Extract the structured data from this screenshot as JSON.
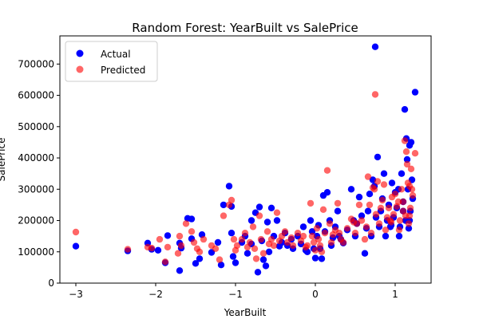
{
  "chart_data": {
    "type": "scatter",
    "title": "Random Forest: YearBuilt vs SalePrice",
    "xlabel": "YearBuilt",
    "ylabel": "SalePrice",
    "xlim": [
      -3.2,
      1.45
    ],
    "ylim": [
      0,
      790000
    ],
    "xticks": [
      -3,
      -2,
      -1,
      0,
      1
    ],
    "xtick_labels": [
      "−3",
      "−2",
      "−1",
      "0",
      "1"
    ],
    "yticks": [
      0,
      100000,
      200000,
      300000,
      400000,
      500000,
      600000,
      700000
    ],
    "ytick_labels": [
      "0",
      "100000",
      "200000",
      "300000",
      "400000",
      "500000",
      "600000",
      "700000"
    ],
    "grid": false,
    "legend": {
      "position": "upper-left"
    },
    "series": [
      {
        "name": "Actual",
        "color": "#0000ff",
        "opacity": 1.0,
        "points": [
          [
            -3.0,
            118000
          ],
          [
            -2.35,
            103000
          ],
          [
            -2.1,
            128000
          ],
          [
            -2.05,
            108000
          ],
          [
            -1.97,
            105000
          ],
          [
            -1.88,
            65000
          ],
          [
            -1.85,
            152000
          ],
          [
            -1.7,
            40000
          ],
          [
            -1.7,
            128000
          ],
          [
            -1.68,
            112000
          ],
          [
            -1.6,
            207000
          ],
          [
            -1.55,
            205000
          ],
          [
            -1.55,
            142000
          ],
          [
            -1.5,
            63000
          ],
          [
            -1.45,
            78000
          ],
          [
            -1.42,
            155000
          ],
          [
            -1.3,
            98000
          ],
          [
            -1.22,
            130000
          ],
          [
            -1.18,
            58000
          ],
          [
            -1.15,
            250000
          ],
          [
            -1.08,
            310000
          ],
          [
            -1.05,
            245000
          ],
          [
            -1.05,
            160000
          ],
          [
            -1.03,
            85000
          ],
          [
            -1.0,
            65000
          ],
          [
            -0.92,
            130000
          ],
          [
            -0.88,
            150000
          ],
          [
            -0.85,
            95000
          ],
          [
            -0.8,
            125000
          ],
          [
            -0.8,
            200000
          ],
          [
            -0.75,
            225000
          ],
          [
            -0.72,
            35000
          ],
          [
            -0.7,
            243000
          ],
          [
            -0.67,
            135000
          ],
          [
            -0.65,
            75000
          ],
          [
            -0.62,
            55000
          ],
          [
            -0.6,
            195000
          ],
          [
            -0.58,
            100000
          ],
          [
            -0.55,
            240000
          ],
          [
            -0.52,
            150000
          ],
          [
            -0.48,
            200000
          ],
          [
            -0.45,
            118000
          ],
          [
            -0.42,
            130000
          ],
          [
            -0.38,
            160000
          ],
          [
            -0.35,
            120000
          ],
          [
            -0.3,
            140000
          ],
          [
            -0.28,
            110000
          ],
          [
            -0.22,
            150000
          ],
          [
            -0.18,
            125000
          ],
          [
            -0.15,
            180000
          ],
          [
            -0.12,
            105000
          ],
          [
            -0.1,
            100000
          ],
          [
            -0.06,
            200000
          ],
          [
            -0.04,
            165000
          ],
          [
            -0.02,
            110000
          ],
          [
            0.0,
            80000
          ],
          [
            0.02,
            150000
          ],
          [
            0.04,
            185000
          ],
          [
            0.06,
            110000
          ],
          [
            0.08,
            78000
          ],
          [
            0.1,
            280000
          ],
          [
            0.12,
            165000
          ],
          [
            0.15,
            290000
          ],
          [
            0.18,
            200000
          ],
          [
            0.2,
            120000
          ],
          [
            0.22,
            145000
          ],
          [
            0.25,
            180000
          ],
          [
            0.28,
            230000
          ],
          [
            0.3,
            150000
          ],
          [
            0.32,
            140000
          ],
          [
            0.35,
            128000
          ],
          [
            0.4,
            170000
          ],
          [
            0.45,
            300000
          ],
          [
            0.48,
            200000
          ],
          [
            0.5,
            150000
          ],
          [
            0.52,
            190000
          ],
          [
            0.55,
            275000
          ],
          [
            0.58,
            215000
          ],
          [
            0.62,
            95000
          ],
          [
            0.64,
            175000
          ],
          [
            0.66,
            230000
          ],
          [
            0.68,
            285000
          ],
          [
            0.7,
            150000
          ],
          [
            0.72,
            330000
          ],
          [
            0.74,
            310000
          ],
          [
            0.75,
            755000
          ],
          [
            0.76,
            210000
          ],
          [
            0.78,
            403000
          ],
          [
            0.8,
            180000
          ],
          [
            0.82,
            230000
          ],
          [
            0.84,
            270000
          ],
          [
            0.86,
            350000
          ],
          [
            0.88,
            150000
          ],
          [
            0.9,
            200000
          ],
          [
            0.92,
            250000
          ],
          [
            0.94,
            180000
          ],
          [
            0.96,
            320000
          ],
          [
            0.98,
            210000
          ],
          [
            1.0,
            290000
          ],
          [
            1.02,
            240000
          ],
          [
            1.04,
            300000
          ],
          [
            1.06,
            180000
          ],
          [
            1.08,
            350000
          ],
          [
            1.1,
            260000
          ],
          [
            1.12,
            555000
          ],
          [
            1.13,
            200000
          ],
          [
            1.14,
            462000
          ],
          [
            1.15,
            395000
          ],
          [
            1.16,
            300000
          ],
          [
            1.17,
            175000
          ],
          [
            1.18,
            440000
          ],
          [
            1.19,
            230000
          ],
          [
            1.2,
            450000
          ],
          [
            1.21,
            330000
          ],
          [
            1.22,
            270000
          ],
          [
            1.25,
            610000
          ],
          [
            1.05,
            150000
          ],
          [
            0.95,
            185000
          ],
          [
            1.1,
            230000
          ],
          [
            1.18,
            200000
          ]
        ]
      },
      {
        "name": "Predicted",
        "color": "#ff0000",
        "opacity": 0.6,
        "points": [
          [
            -3.0,
            163000
          ],
          [
            -2.35,
            108000
          ],
          [
            -2.1,
            115000
          ],
          [
            -2.05,
            112000
          ],
          [
            -1.95,
            140000
          ],
          [
            -1.88,
            68000
          ],
          [
            -1.85,
            115000
          ],
          [
            -1.72,
            95000
          ],
          [
            -1.7,
            150000
          ],
          [
            -1.68,
            120000
          ],
          [
            -1.62,
            190000
          ],
          [
            -1.55,
            165000
          ],
          [
            -1.52,
            130000
          ],
          [
            -1.48,
            110000
          ],
          [
            -1.45,
            100000
          ],
          [
            -1.4,
            140000
          ],
          [
            -1.3,
            120000
          ],
          [
            -1.25,
            110000
          ],
          [
            -1.2,
            75000
          ],
          [
            -1.15,
            215000
          ],
          [
            -1.08,
            250000
          ],
          [
            -1.05,
            265000
          ],
          [
            -1.02,
            140000
          ],
          [
            -1.0,
            105000
          ],
          [
            -0.98,
            120000
          ],
          [
            -0.92,
            140000
          ],
          [
            -0.88,
            160000
          ],
          [
            -0.85,
            115000
          ],
          [
            -0.82,
            130000
          ],
          [
            -0.78,
            180000
          ],
          [
            -0.76,
            110000
          ],
          [
            -0.74,
            78000
          ],
          [
            -0.7,
            215000
          ],
          [
            -0.68,
            140000
          ],
          [
            -0.65,
            95000
          ],
          [
            -0.6,
            165000
          ],
          [
            -0.58,
            125000
          ],
          [
            -0.55,
            140000
          ],
          [
            -0.52,
            120000
          ],
          [
            -0.48,
            225000
          ],
          [
            -0.45,
            135000
          ],
          [
            -0.42,
            150000
          ],
          [
            -0.38,
            165000
          ],
          [
            -0.35,
            130000
          ],
          [
            -0.3,
            145000
          ],
          [
            -0.28,
            120000
          ],
          [
            -0.22,
            160000
          ],
          [
            -0.18,
            135000
          ],
          [
            -0.15,
            150000
          ],
          [
            -0.12,
            115000
          ],
          [
            -0.1,
            120000
          ],
          [
            -0.06,
            255000
          ],
          [
            -0.04,
            150000
          ],
          [
            -0.02,
            130000
          ],
          [
            0.0,
            105000
          ],
          [
            0.02,
            175000
          ],
          [
            0.04,
            140000
          ],
          [
            0.06,
            120000
          ],
          [
            0.08,
            100000
          ],
          [
            0.1,
            235000
          ],
          [
            0.12,
            160000
          ],
          [
            0.15,
            360000
          ],
          [
            0.18,
            190000
          ],
          [
            0.2,
            130000
          ],
          [
            0.22,
            155000
          ],
          [
            0.25,
            170000
          ],
          [
            0.28,
            255000
          ],
          [
            0.3,
            160000
          ],
          [
            0.32,
            140000
          ],
          [
            0.35,
            130000
          ],
          [
            0.4,
            175000
          ],
          [
            0.45,
            205000
          ],
          [
            0.48,
            195000
          ],
          [
            0.5,
            160000
          ],
          [
            0.52,
            190000
          ],
          [
            0.55,
            250000
          ],
          [
            0.58,
            200000
          ],
          [
            0.62,
            140000
          ],
          [
            0.64,
            180000
          ],
          [
            0.66,
            340000
          ],
          [
            0.68,
            250000
          ],
          [
            0.7,
            160000
          ],
          [
            0.72,
            305000
          ],
          [
            0.74,
            300000
          ],
          [
            0.75,
            603000
          ],
          [
            0.76,
            220000
          ],
          [
            0.78,
            325000
          ],
          [
            0.8,
            190000
          ],
          [
            0.82,
            240000
          ],
          [
            0.84,
            265000
          ],
          [
            0.86,
            315000
          ],
          [
            0.88,
            170000
          ],
          [
            0.9,
            210000
          ],
          [
            0.92,
            240000
          ],
          [
            0.94,
            200000
          ],
          [
            0.96,
            275000
          ],
          [
            0.98,
            220000
          ],
          [
            1.0,
            285000
          ],
          [
            1.02,
            245000
          ],
          [
            1.04,
            260000
          ],
          [
            1.06,
            200000
          ],
          [
            1.08,
            300000
          ],
          [
            1.1,
            260000
          ],
          [
            1.12,
            455000
          ],
          [
            1.13,
            215000
          ],
          [
            1.14,
            420000
          ],
          [
            1.15,
            380000
          ],
          [
            1.16,
            320000
          ],
          [
            1.17,
            190000
          ],
          [
            1.18,
            310000
          ],
          [
            1.19,
            240000
          ],
          [
            1.2,
            365000
          ],
          [
            1.21,
            300000
          ],
          [
            1.22,
            280000
          ],
          [
            1.25,
            415000
          ],
          [
            1.05,
            170000
          ],
          [
            0.95,
            195000
          ],
          [
            1.1,
            230000
          ],
          [
            1.18,
            215000
          ]
        ]
      }
    ]
  }
}
